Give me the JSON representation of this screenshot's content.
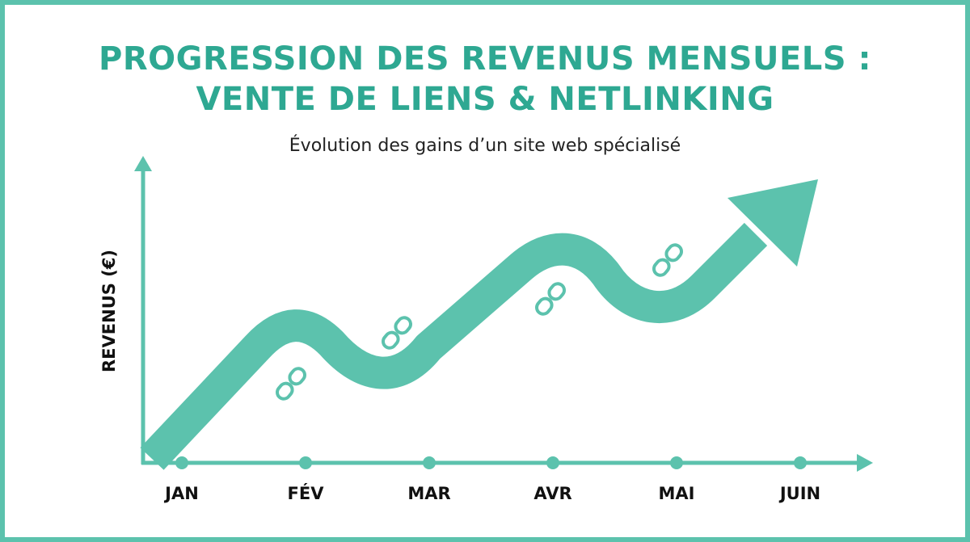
{
  "chart_data": {
    "type": "line",
    "title_line1": "PROGRESSION DES REVENUS MENSUELS :",
    "title_line2": "VENTE DE LIENS & NETLINKING",
    "subtitle": "Évolution des gains d’un site web spécialisé",
    "xlabel": "",
    "ylabel": "REVENUS (€)",
    "categories": [
      "JAN",
      "FÉV",
      "MAR",
      "AVR",
      "MAI",
      "JUIN"
    ],
    "trend": "upward with fluctuations",
    "color": "#5cc2ad",
    "title_color": "#2ea892",
    "grid": false
  }
}
